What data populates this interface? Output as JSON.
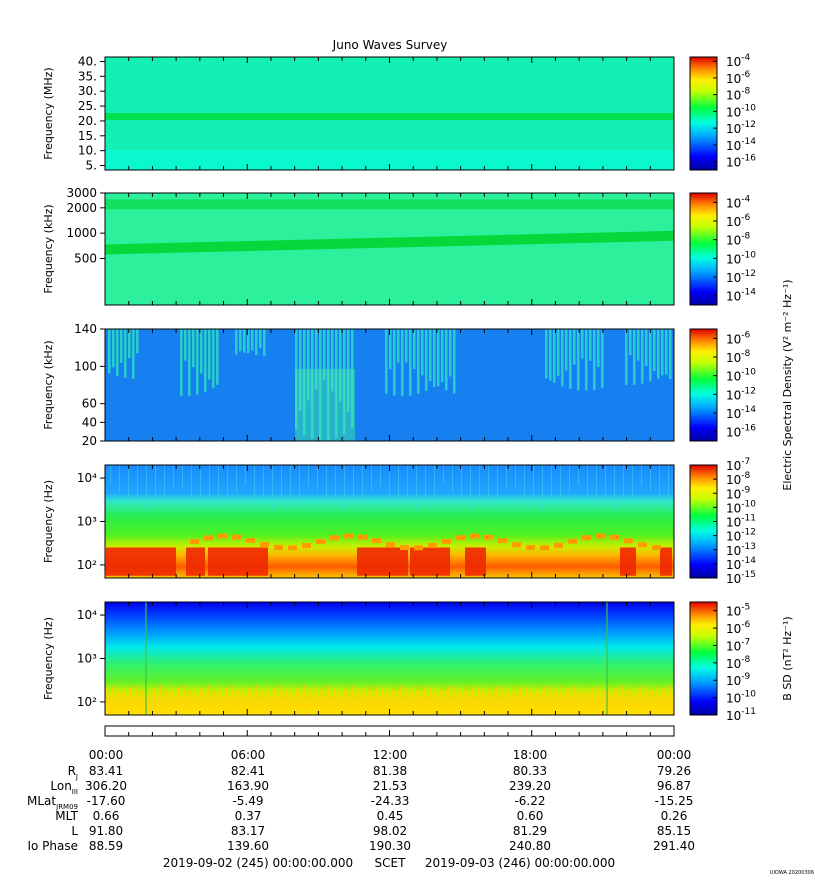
{
  "title": "Juno Waves Survey",
  "footer_credit": "UIOWA 20200306",
  "chart_data": [
    {
      "type": "heatmap",
      "ylabel": "Frequency (MHz)",
      "yticks": [
        "40.",
        "35.",
        "30.",
        "25.",
        "20.",
        "15.",
        "10.",
        "5."
      ],
      "yvalues": [
        40,
        35,
        30,
        25,
        20,
        15,
        10,
        5
      ],
      "ylim": [
        3.5,
        41.5
      ],
      "scale": "linear",
      "colorbar": {
        "ticks": [
          "-4",
          "-6",
          "-8",
          "-10",
          "-12",
          "-14",
          "-16"
        ],
        "range": [
          -17,
          -3.5
        ],
        "base": "10"
      },
      "features": [
        {
          "type": "band",
          "y": 21.5,
          "intensity": "green"
        }
      ]
    },
    {
      "type": "heatmap",
      "ylabel": "Frequency (kHz)",
      "yticks": [
        "3000",
        "2000",
        "1000",
        "500"
      ],
      "yvalues": [
        3000,
        2000,
        1000,
        500
      ],
      "ylim": [
        140,
        3000
      ],
      "scale": "log",
      "colorbar": {
        "ticks": [
          "-4",
          "-6",
          "-8",
          "-10",
          "-12",
          "-14"
        ],
        "range": [
          -15,
          -3
        ]
      },
      "features": [
        {
          "type": "band",
          "y": 2200
        },
        {
          "type": "band",
          "y_start": 640,
          "y_end": 930
        }
      ]
    },
    {
      "type": "heatmap",
      "ylabel": "Frequency (kHz)",
      "yticks": [
        "140",
        "100",
        "60",
        "40",
        "20"
      ],
      "yvalues": [
        140,
        100,
        60,
        40,
        20
      ],
      "ylim": [
        20,
        140
      ],
      "scale": "linear",
      "colorbar": {
        "ticks": [
          "-6",
          "-8",
          "-10",
          "-12",
          "-14",
          "-16"
        ],
        "range": [
          -17,
          -5
        ],
        "label": "Electric Spectral Density (V² m⁻² Hz⁻¹)"
      }
    },
    {
      "type": "heatmap",
      "ylabel": "Frequency (Hz)",
      "yticks": [
        "10⁴",
        "10³",
        "10²"
      ],
      "yvalues": [
        10000,
        1000,
        100
      ],
      "ylim": [
        50,
        20000
      ],
      "scale": "log",
      "colorbar": {
        "ticks": [
          "-7",
          "-8",
          "-9",
          "-10",
          "-11",
          "-12",
          "-13",
          "-14",
          "-15"
        ],
        "range": [
          -15,
          -7
        ]
      }
    },
    {
      "type": "heatmap",
      "ylabel": "Frequency (Hz)",
      "yticks": [
        "10⁴",
        "10³",
        "10²"
      ],
      "yvalues": [
        10000,
        1000,
        100
      ],
      "ylim": [
        50,
        20000
      ],
      "scale": "log",
      "colorbar": {
        "ticks": [
          "-5",
          "-6",
          "-7",
          "-8",
          "-9",
          "-10",
          "-11"
        ],
        "range": [
          -11,
          -4.5
        ],
        "label": "B SD (nT² Hz⁻¹)"
      }
    }
  ],
  "xaxis": {
    "times": [
      "00:00",
      "06:00",
      "12:00",
      "18:00",
      "00:00"
    ],
    "rows": [
      {
        "label": "RJ",
        "values": [
          "83.41",
          "82.41",
          "81.38",
          "80.33",
          "79.26"
        ]
      },
      {
        "label": "LonIII",
        "values": [
          "306.20",
          "163.90",
          "21.53",
          "239.20",
          "96.87"
        ]
      },
      {
        "label": "MLatJRM09",
        "values": [
          "-17.60",
          "-5.49",
          "-24.33",
          "-6.22",
          "-15.25"
        ]
      },
      {
        "label": "MLT",
        "values": [
          "0.66",
          "0.37",
          "0.45",
          "0.60",
          "0.26"
        ]
      },
      {
        "label": "L",
        "values": [
          "91.80",
          "83.17",
          "98.02",
          "81.29",
          "85.15"
        ]
      },
      {
        "label": "Io Phase",
        "values": [
          "88.59",
          "139.60",
          "190.30",
          "240.80",
          "291.40"
        ]
      }
    ],
    "footer": {
      "start": "2019-09-02 (245) 00:00:00.000",
      "scet": "SCET",
      "end": "2019-09-03 (246) 00:00:00.000"
    }
  }
}
